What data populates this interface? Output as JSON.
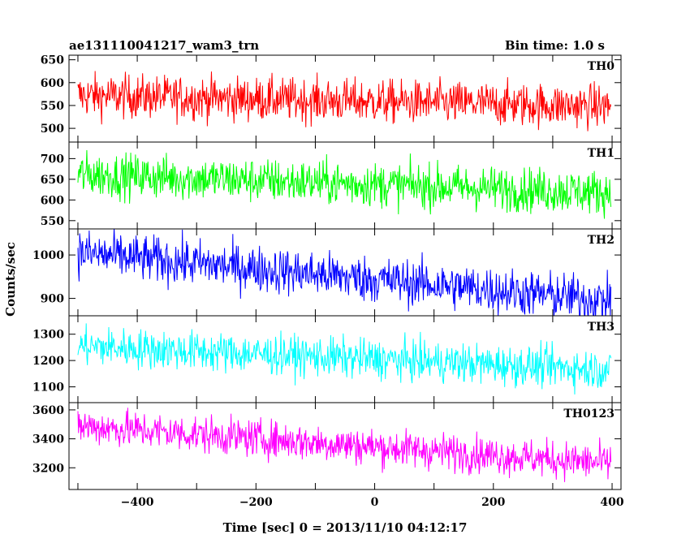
{
  "header": {
    "title": "ae131110041217_wam3_trn",
    "bin_time": "Bin time: 1.0 s"
  },
  "axes": {
    "ylabel": "Counts/sec",
    "xlabel": "Time [sec] 0 = 2013/11/10 04:12:17",
    "xlim": [
      -515,
      415
    ],
    "xticks": [
      -400,
      -200,
      0,
      200,
      400
    ]
  },
  "chart_data": {
    "type": "line",
    "x_range": [
      -500,
      398
    ],
    "bin_seconds": 1.0,
    "panels": [
      {
        "name": "TH0",
        "color": "#ff0000",
        "ylim": [
          470,
          660
        ],
        "yticks": [
          500,
          550,
          600,
          650
        ],
        "trend_start": 572,
        "trend_end": 548,
        "noise": 24
      },
      {
        "name": "TH1",
        "color": "#00ff00",
        "ylim": [
          530,
          740
        ],
        "yticks": [
          550,
          600,
          650,
          700
        ],
        "trend_start": 662,
        "trend_end": 618,
        "noise": 27
      },
      {
        "name": "TH2",
        "color": "#0000ff",
        "ylim": [
          860,
          1060
        ],
        "yticks": [
          900,
          1000
        ],
        "trend_start": 1005,
        "trend_end": 895,
        "noise": 27
      },
      {
        "name": "TH3",
        "color": "#00ffff",
        "ylim": [
          1040,
          1370
        ],
        "yticks": [
          1100,
          1200,
          1300
        ],
        "trend_start": 1255,
        "trend_end": 1165,
        "noise": 38
      },
      {
        "name": "TH0123",
        "color": "#ff00ff",
        "ylim": [
          3050,
          3650
        ],
        "yticks": [
          3200,
          3400,
          3600
        ],
        "trend_start": 3490,
        "trend_end": 3230,
        "noise": 65
      }
    ]
  }
}
